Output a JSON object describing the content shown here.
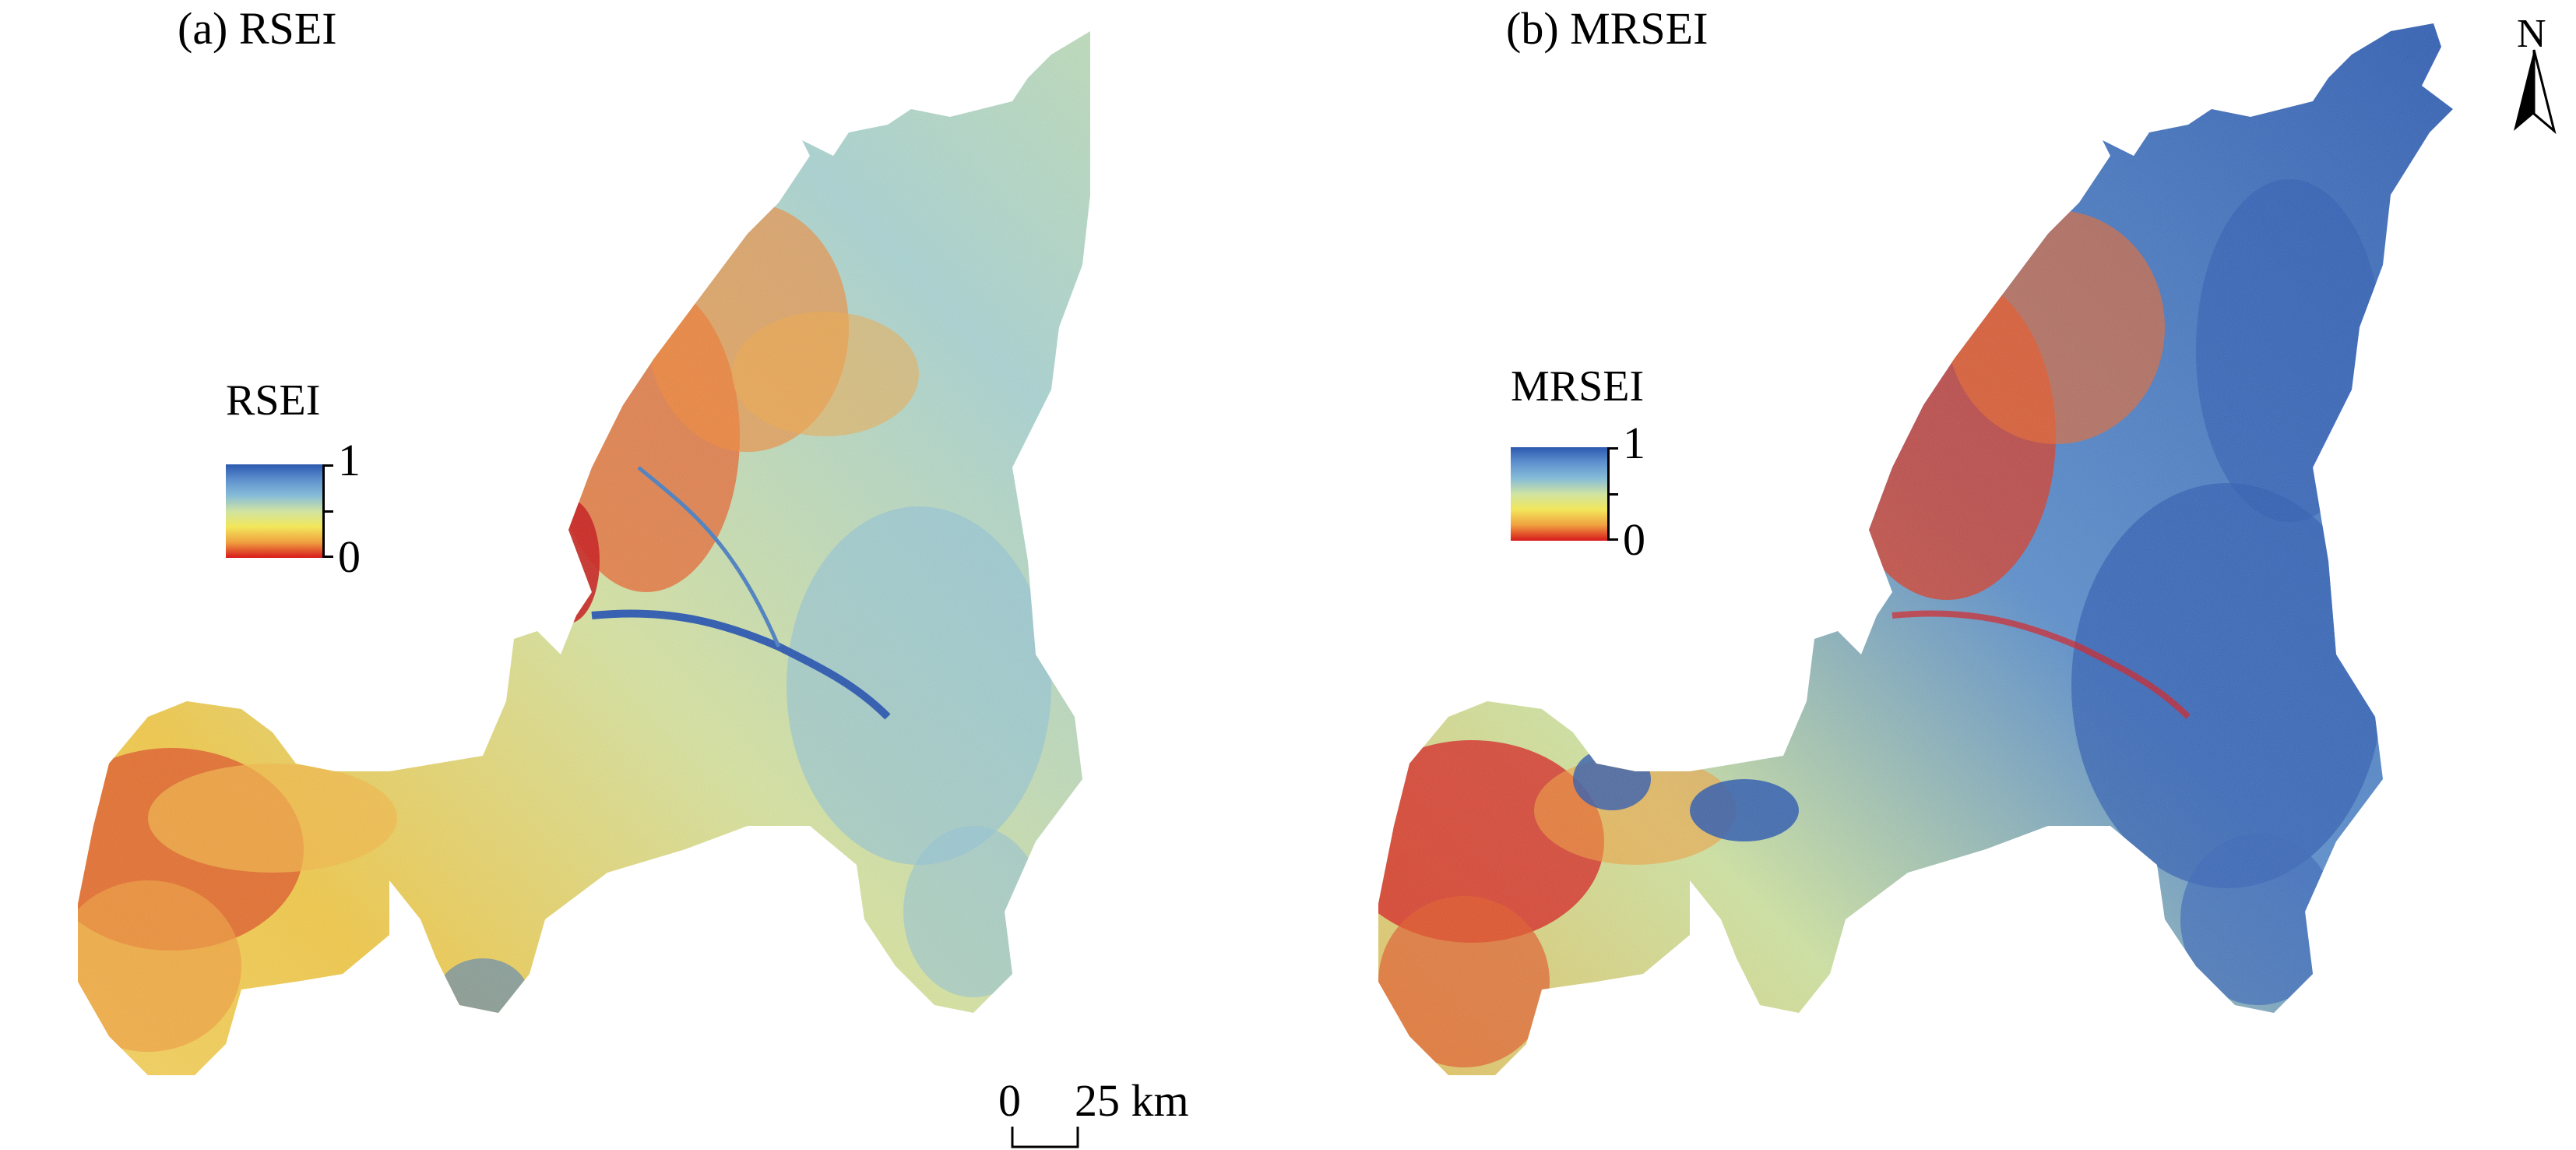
{
  "panels": [
    {
      "title": "(a) RSEI",
      "legend": {
        "title": "RSEI",
        "max_label": "1",
        "min_label": "0"
      }
    },
    {
      "title": "(b) MRSEI",
      "legend": {
        "title": "MRSEI",
        "max_label": "1",
        "min_label": "0"
      }
    }
  ],
  "north_arrow": {
    "label": "N"
  },
  "scale_bar": {
    "zero_label": "0",
    "distance_label": "25 km"
  },
  "colors": {
    "high": "#2c59b0",
    "mid_high": "#86bcd8",
    "mid": "#cfe3a2",
    "mid_low": "#f2e75b",
    "low": "#d7191c"
  }
}
